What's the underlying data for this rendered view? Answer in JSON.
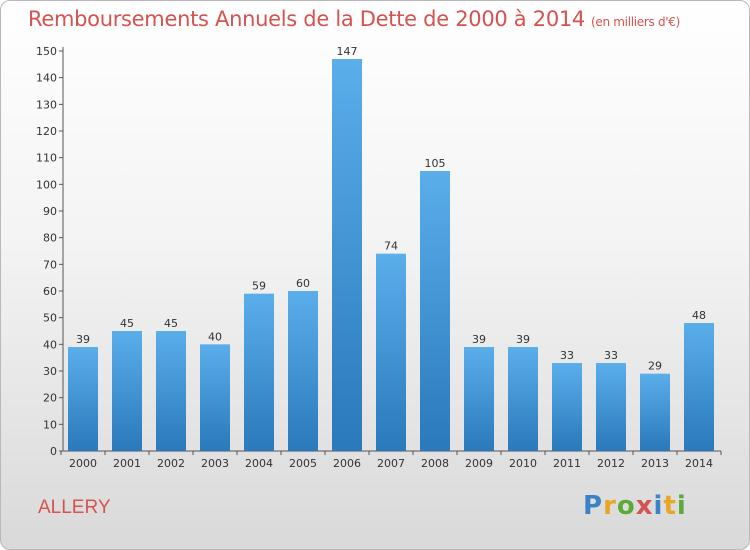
{
  "title": "Remboursements Annuels de la Dette de 2000 à 2014",
  "title_unit": "(en milliers d'€)",
  "commune": "ALLERY",
  "logo": {
    "text": "Proxiti",
    "letter_colors": [
      "#3a83c6",
      "#e8a623",
      "#5cab3a",
      "#d6524f",
      "#3a83c6",
      "#e8a623",
      "#5cab3a"
    ]
  },
  "colors": {
    "title": "#d6524f",
    "bar_light": "#5aaeea",
    "bar_dark": "#2a79bb"
  },
  "chart_data": {
    "type": "bar",
    "title": "Remboursements Annuels de la Dette de 2000 à 2014",
    "ylabel": "",
    "xlabel": "",
    "ylim": [
      0,
      150
    ],
    "ytick_step": 10,
    "grid": false,
    "categories": [
      "2000",
      "2001",
      "2002",
      "2003",
      "2004",
      "2005",
      "2006",
      "2007",
      "2008",
      "2009",
      "2010",
      "2011",
      "2012",
      "2013",
      "2014"
    ],
    "values": [
      39,
      45,
      45,
      40,
      59,
      60,
      147,
      74,
      105,
      39,
      39,
      33,
      33,
      29,
      48
    ]
  }
}
